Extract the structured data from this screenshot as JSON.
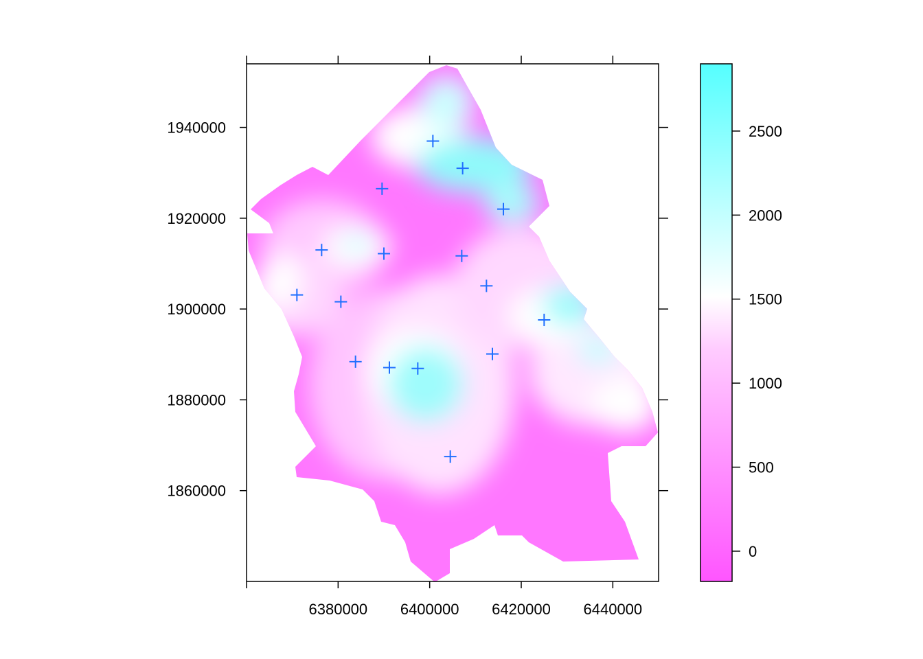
{
  "map": {
    "x_axis": {
      "range": [
        6360000,
        6450000
      ],
      "major_ticks": [
        6380000,
        6400000,
        6420000,
        6440000
      ],
      "tick_marks": [
        6360000,
        6380000,
        6400000,
        6420000,
        6440000
      ],
      "tick_labels": [
        "6380000",
        "6400000",
        "6420000",
        "6440000"
      ]
    },
    "y_axis": {
      "range": [
        1840000,
        1954000
      ],
      "ticks": [
        1860000,
        1880000,
        1900000,
        1920000,
        1940000
      ],
      "tick_labels": [
        "1860000",
        "1880000",
        "1900000",
        "1920000",
        "1940000"
      ]
    },
    "stations": [
      {
        "x": 6400700,
        "y": 1937000
      },
      {
        "x": 6407200,
        "y": 1931000
      },
      {
        "x": 6389600,
        "y": 1926500
      },
      {
        "x": 6416100,
        "y": 1922000
      },
      {
        "x": 6376400,
        "y": 1913000
      },
      {
        "x": 6390000,
        "y": 1912200
      },
      {
        "x": 6407000,
        "y": 1911700
      },
      {
        "x": 6412400,
        "y": 1905100
      },
      {
        "x": 6371000,
        "y": 1903100
      },
      {
        "x": 6380600,
        "y": 1901600
      },
      {
        "x": 6425000,
        "y": 1897600
      },
      {
        "x": 6413700,
        "y": 1890100
      },
      {
        "x": 6383800,
        "y": 1888400
      },
      {
        "x": 6391200,
        "y": 1887100
      },
      {
        "x": 6397400,
        "y": 1886900
      },
      {
        "x": 6404500,
        "y": 1867500
      }
    ],
    "marker_color": "#1f6fff",
    "colors": {
      "low": "#ff55ff",
      "mid": "#ffffff",
      "high": "#55ffff"
    }
  },
  "legend": {
    "range": [
      -180,
      2900
    ],
    "ticks": [
      0,
      500,
      1000,
      1500,
      2000,
      2500
    ],
    "tick_labels": [
      "0",
      "500",
      "1000",
      "1500",
      "2000",
      "2500"
    ]
  }
}
